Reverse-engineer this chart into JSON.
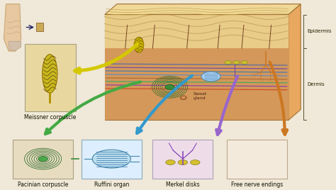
{
  "background_color": "#f0e8d8",
  "skin_bg": "#d4a870",
  "skin_epi_color": "#e8d4a0",
  "skin_dermis_color": "#c89050",
  "epidermis_label": "Epidermis",
  "dermis_label": "Dermis",
  "sweat_gland_label": "Sweat\ngland",
  "thumb_labels": [
    "Meissner corpuscle",
    "Pacinian corpuscle",
    "Ruffini organ",
    "Merkel disks",
    "Free nerve endings"
  ],
  "thumb_bg": "#e8d8b8",
  "arrow_colors": {
    "meissner": "#d4c800",
    "pacinian": "#44aa44",
    "ruffini": "#3399cc",
    "merkel": "#9966cc",
    "free": "#cc7722"
  },
  "nerve_colors": [
    "#4466aa",
    "#6644aa",
    "#3377bb",
    "#5588cc",
    "#aa6633",
    "#33aa66",
    "#8833aa",
    "#cc4422"
  ],
  "label_fontsize": 5.5
}
